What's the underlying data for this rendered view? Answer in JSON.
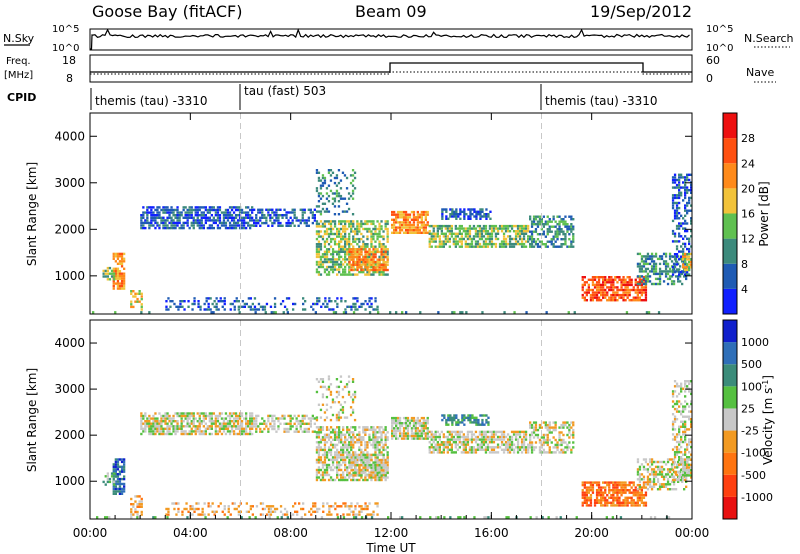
{
  "header": {
    "station": "Goose Bay (fitACF)",
    "beam": "Beam 09",
    "date": "19/Sep/2012"
  },
  "status_panels": {
    "nsky_label": "N.Sky",
    "nsky_ticks": [
      "10^5",
      "10^0"
    ],
    "nsearch_label": "N.Search",
    "freq_label": "Freq.",
    "freq_unit": "[MHz]",
    "freq_ticks": [
      "18",
      "8"
    ],
    "nave_label": "Nave",
    "nave_ticks": [
      "60",
      "0"
    ],
    "cpid_label": "CPID",
    "cpid_segments": [
      {
        "label": "themis (tau) -3310",
        "start_hour": 0
      },
      {
        "label": "tau (fast) 503",
        "start_hour": 6
      },
      {
        "label": "themis (tau) -3310",
        "start_hour": 18
      }
    ]
  },
  "chart_data": [
    {
      "type": "heatmap",
      "name": "power",
      "ylabel": "Slant Range [km]",
      "y_ticks": [
        1000,
        2000,
        3000,
        4000
      ],
      "ylim": [
        180,
        4500
      ],
      "xlim": [
        0,
        24
      ],
      "colorbar": {
        "label": "Power [dB]",
        "ticks": [
          "4",
          "8",
          "12",
          "16",
          "20",
          "24",
          "28"
        ],
        "colors": [
          "#1020ff",
          "#1f5bb4",
          "#3c8a7c",
          "#5fc050",
          "#f2c33a",
          "#ff8a1a",
          "#ff5010",
          "#ee1010"
        ]
      }
    },
    {
      "type": "heatmap",
      "name": "velocity",
      "ylabel": "Slant Range [km]",
      "y_ticks": [
        1000,
        2000,
        3000,
        4000
      ],
      "ylim": [
        180,
        4500
      ],
      "xlim": [
        0,
        24
      ],
      "xlabel": "Time UT",
      "x_ticks": [
        "00:00",
        "04:00",
        "08:00",
        "12:00",
        "16:00",
        "20:00",
        "00:00"
      ],
      "colorbar": {
        "label": "Velocity [m s^-1]",
        "ticks": [
          "1000",
          "500",
          "100",
          "25",
          "-25",
          "-100",
          "-500",
          "-1000"
        ],
        "colors": [
          "#1020cc",
          "#2f6fb8",
          "#3b8c7a",
          "#55c040",
          "#c8c8c8",
          "#f29a22",
          "#ff7410",
          "#ff4010",
          "#e81010"
        ]
      }
    }
  ]
}
